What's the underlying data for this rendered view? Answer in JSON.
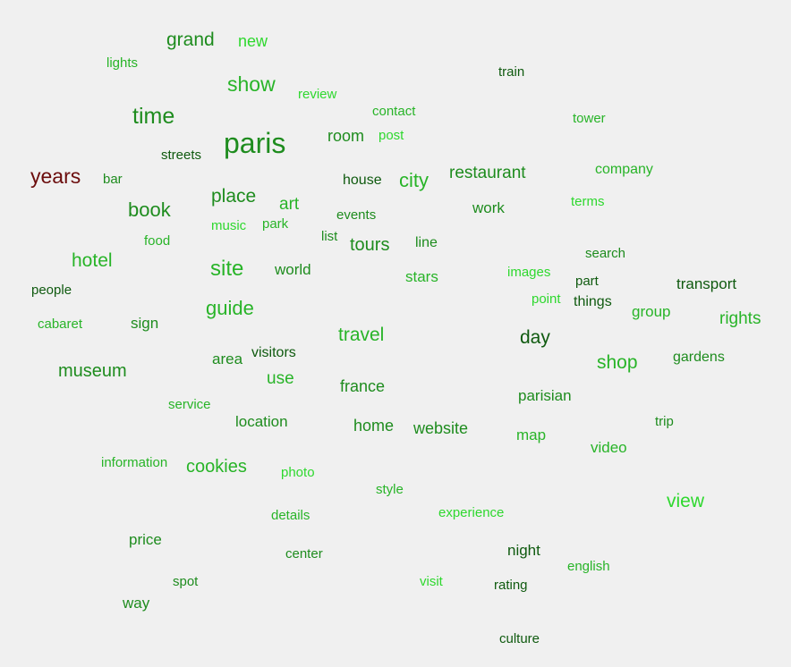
{
  "colors": {
    "background": "#f0f0f0",
    "dark_green": "#0f5a0f",
    "green": "#1e8c1e",
    "medium_green": "#28b428",
    "bright_green": "#2ed82e",
    "dark_red": "#6b0c0c"
  },
  "words": [
    {
      "text": "grand",
      "color": "#1e8c1e"
    },
    {
      "text": "new",
      "color": "#2ed82e"
    },
    {
      "text": "lights",
      "color": "#28b428"
    },
    {
      "text": "train",
      "color": "#0f5a0f"
    },
    {
      "text": "show",
      "color": "#28b428"
    },
    {
      "text": "review",
      "color": "#2ed82e"
    },
    {
      "text": "time",
      "color": "#1e8c1e"
    },
    {
      "text": "contact",
      "color": "#28b428"
    },
    {
      "text": "tower",
      "color": "#28b428"
    },
    {
      "text": "paris",
      "color": "#1e8c1e"
    },
    {
      "text": "room",
      "color": "#1e8c1e"
    },
    {
      "text": "post",
      "color": "#2ed82e"
    },
    {
      "text": "streets",
      "color": "#0f5a0f"
    },
    {
      "text": "company",
      "color": "#28b428"
    },
    {
      "text": "years",
      "color": "#6b0c0c"
    },
    {
      "text": "bar",
      "color": "#1e8c1e"
    },
    {
      "text": "house",
      "color": "#0f5a0f"
    },
    {
      "text": "city",
      "color": "#28b428"
    },
    {
      "text": "restaurant",
      "color": "#1e8c1e"
    },
    {
      "text": "place",
      "color": "#1e8c1e"
    },
    {
      "text": "art",
      "color": "#28b428"
    },
    {
      "text": "terms",
      "color": "#2ed82e"
    },
    {
      "text": "book",
      "color": "#1e8c1e"
    },
    {
      "text": "work",
      "color": "#1e8c1e"
    },
    {
      "text": "events",
      "color": "#1e8c1e"
    },
    {
      "text": "music",
      "color": "#2ed82e"
    },
    {
      "text": "park",
      "color": "#28b428"
    },
    {
      "text": "food",
      "color": "#28b428"
    },
    {
      "text": "list",
      "color": "#1e8c1e"
    },
    {
      "text": "tours",
      "color": "#1e8c1e"
    },
    {
      "text": "line",
      "color": "#1e8c1e"
    },
    {
      "text": "search",
      "color": "#1e8c1e"
    },
    {
      "text": "hotel",
      "color": "#28b428"
    },
    {
      "text": "site",
      "color": "#28b428"
    },
    {
      "text": "world",
      "color": "#1e8c1e"
    },
    {
      "text": "images",
      "color": "#2ed82e"
    },
    {
      "text": "stars",
      "color": "#28b428"
    },
    {
      "text": "part",
      "color": "#0f5a0f"
    },
    {
      "text": "transport",
      "color": "#0f5a0f"
    },
    {
      "text": "people",
      "color": "#0f5a0f"
    },
    {
      "text": "point",
      "color": "#2ed82e"
    },
    {
      "text": "things",
      "color": "#0f5a0f"
    },
    {
      "text": "guide",
      "color": "#28b428"
    },
    {
      "text": "group",
      "color": "#28b428"
    },
    {
      "text": "rights",
      "color": "#28b428"
    },
    {
      "text": "cabaret",
      "color": "#28b428"
    },
    {
      "text": "sign",
      "color": "#1e8c1e"
    },
    {
      "text": "travel",
      "color": "#28b428"
    },
    {
      "text": "day",
      "color": "#0f5a0f"
    },
    {
      "text": "visitors",
      "color": "#0f5a0f"
    },
    {
      "text": "area",
      "color": "#1e8c1e"
    },
    {
      "text": "shop",
      "color": "#28b428"
    },
    {
      "text": "gardens",
      "color": "#1e8c1e"
    },
    {
      "text": "museum",
      "color": "#1e8c1e"
    },
    {
      "text": "use",
      "color": "#28b428"
    },
    {
      "text": "france",
      "color": "#1e8c1e"
    },
    {
      "text": "parisian",
      "color": "#1e8c1e"
    },
    {
      "text": "service",
      "color": "#28b428"
    },
    {
      "text": "location",
      "color": "#1e8c1e"
    },
    {
      "text": "trip",
      "color": "#1e8c1e"
    },
    {
      "text": "home",
      "color": "#1e8c1e"
    },
    {
      "text": "website",
      "color": "#1e8c1e"
    },
    {
      "text": "map",
      "color": "#28b428"
    },
    {
      "text": "video",
      "color": "#28b428"
    },
    {
      "text": "information",
      "color": "#28b428"
    },
    {
      "text": "cookies",
      "color": "#28b428"
    },
    {
      "text": "photo",
      "color": "#2ed82e"
    },
    {
      "text": "style",
      "color": "#28b428"
    },
    {
      "text": "view",
      "color": "#2ed82e"
    },
    {
      "text": "details",
      "color": "#28b428"
    },
    {
      "text": "experience",
      "color": "#2ed82e"
    },
    {
      "text": "price",
      "color": "#1e8c1e"
    },
    {
      "text": "center",
      "color": "#1e8c1e"
    },
    {
      "text": "night",
      "color": "#0f5a0f"
    },
    {
      "text": "english",
      "color": "#28b428"
    },
    {
      "text": "spot",
      "color": "#1e8c1e"
    },
    {
      "text": "visit",
      "color": "#2ed82e"
    },
    {
      "text": "rating",
      "color": "#0f5a0f"
    },
    {
      "text": "way",
      "color": "#1e8c1e"
    },
    {
      "text": "culture",
      "color": "#0f5a0f"
    }
  ]
}
